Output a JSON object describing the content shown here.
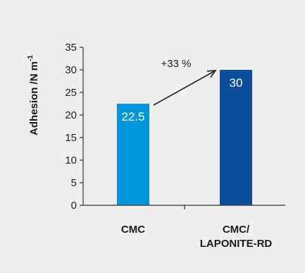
{
  "chart_data": {
    "type": "bar",
    "title": "",
    "xlabel": "",
    "ylabel": "Adhesion /N m",
    "ylabel_superscript": "-1",
    "ylim": [
      0,
      35
    ],
    "yticks": [
      0,
      5,
      10,
      15,
      20,
      25,
      30,
      35
    ],
    "categories": [
      [
        "CMC"
      ],
      [
        "CMC/",
        "LAPONITE-RD"
      ]
    ],
    "values": [
      22.5,
      30
    ],
    "data_labels": [
      "22.5",
      "30"
    ],
    "bar_colors": [
      "#0096db",
      "#0b4f9c"
    ],
    "annotation": {
      "text": "+33 %",
      "type": "arrow",
      "from_category": 0,
      "to_category": 1
    },
    "grid": false,
    "legend": "none"
  },
  "colors": {
    "background": "#efefef",
    "axis": "#333333",
    "arrow": "#222222"
  }
}
